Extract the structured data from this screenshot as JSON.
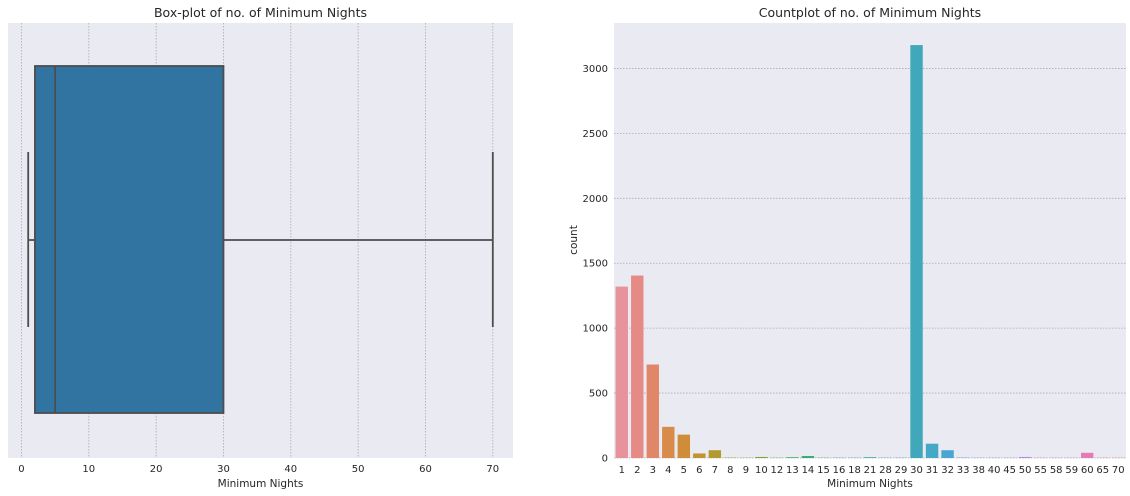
{
  "chart_data": [
    {
      "type": "box",
      "title": "Box-plot of no. of Minimum Nights",
      "xlabel": "Minimum Nights",
      "ylabel": "",
      "xlim": [
        -2,
        73
      ],
      "xticks": [
        0,
        10,
        20,
        30,
        40,
        50,
        60,
        70
      ],
      "grid": true,
      "box": {
        "whisker_low": 1,
        "q1": 2,
        "median": 5,
        "q3": 30,
        "whisker_high": 70
      },
      "color": "#3274a1",
      "line_color": "#4d4d4d"
    },
    {
      "type": "bar",
      "title": "Countplot of no. of Minimum Nights",
      "xlabel": "Minimum Nights",
      "ylabel": "count",
      "ylim": [
        0,
        3350
      ],
      "yticks": [
        0,
        500,
        1000,
        1500,
        2000,
        2500,
        3000
      ],
      "grid": true,
      "categories": [
        "1",
        "2",
        "3",
        "4",
        "5",
        "6",
        "7",
        "8",
        "9",
        "10",
        "12",
        "13",
        "14",
        "15",
        "16",
        "18",
        "21",
        "28",
        "29",
        "30",
        "31",
        "32",
        "33",
        "38",
        "40",
        "45",
        "50",
        "55",
        "58",
        "59",
        "60",
        "65",
        "70"
      ],
      "values": [
        1320,
        1405,
        720,
        240,
        180,
        35,
        60,
        3,
        2,
        8,
        2,
        6,
        15,
        2,
        2,
        2,
        6,
        2,
        2,
        3180,
        110,
        60,
        3,
        2,
        2,
        2,
        8,
        2,
        2,
        2,
        40,
        2,
        2
      ],
      "colors": [
        "#e8929c",
        "#e58a84",
        "#e0876a",
        "#d98b4a",
        "#cf8d3a",
        "#c39332",
        "#b29a30",
        "#a0a030",
        "#8fa331",
        "#7aa734",
        "#5aab3c",
        "#3cac5a",
        "#34aa74",
        "#36a884",
        "#38a790",
        "#3aa69a",
        "#3ca6a2",
        "#3ea6aa",
        "#40a7b2",
        "#41a8bc",
        "#44a8c6",
        "#49a6d2",
        "#5fa0de",
        "#7c98e4",
        "#9590e8",
        "#a88aea",
        "#bb84e6",
        "#cb80dc",
        "#d87ed0",
        "#e17cc4",
        "#e57ab8",
        "#e879aa",
        "#ea7b9e"
      ]
    }
  ]
}
